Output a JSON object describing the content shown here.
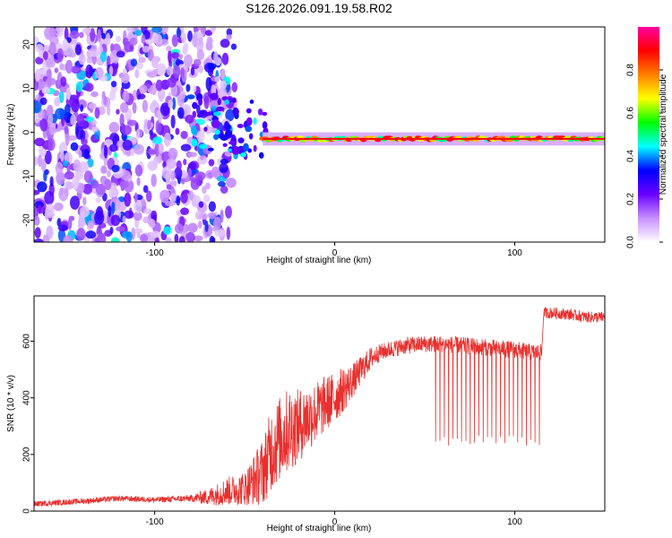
{
  "title": "S126.2026.091.19.58.R02",
  "chart_data": [
    {
      "type": "heatmap",
      "xlabel": "Height of straight line (km)",
      "ylabel": "Frequency (Hz)",
      "xlim": [
        -167,
        150
      ],
      "ylim": [
        -25,
        24
      ],
      "xticks": [
        -100,
        0,
        100
      ],
      "xtick_labels": [
        "-100",
        "0",
        "100"
      ],
      "yticks": [
        -20,
        -10,
        0,
        10,
        20
      ],
      "ytick_labels": [
        "-20",
        "-10",
        "0",
        "10",
        "20"
      ],
      "colorbar": {
        "label": "Normalized spectral amplitude",
        "range": [
          0,
          1
        ],
        "ticks": [
          0.0,
          0.2,
          0.4,
          0.6,
          0.8
        ],
        "tick_labels": [
          "0.0",
          "0.2",
          "0.4",
          "0.6",
          "0.8"
        ],
        "colormap": [
          "#ffffff",
          "#c890ff",
          "#6a00ff",
          "#0000ff",
          "#00ffff",
          "#00ff00",
          "#ffff00",
          "#ff8000",
          "#ff0000",
          "#ff00a0"
        ]
      },
      "regions": [
        {
          "name": "noise",
          "x_range": [
            -167,
            -60
          ],
          "f_range": [
            -25,
            24
          ],
          "amplitude": 0.1
        },
        {
          "name": "transition",
          "x_range": [
            -80,
            -40
          ],
          "f_range": [
            -5,
            10
          ],
          "amplitude": 0.3
        },
        {
          "name": "carrier",
          "x_range": [
            -40,
            150
          ],
          "f_center": -1.5,
          "amplitude": 0.8
        }
      ],
      "colors": {
        "line": "#000000"
      }
    },
    {
      "type": "line",
      "xlabel": "Height of straight line (km)",
      "ylabel": "SNR (10 * v/v)",
      "xlim": [
        -167,
        150
      ],
      "ylim": [
        0,
        760
      ],
      "xticks": [
        -100,
        0,
        100
      ],
      "xtick_labels": [
        "-100",
        "0",
        "100"
      ],
      "yticks": [
        0,
        200,
        400,
        600
      ],
      "ytick_labels": [
        "0",
        "200",
        "400",
        "600"
      ],
      "series": [
        {
          "color": "#e8302e",
          "x": [
            -167,
            -140,
            -120,
            -100,
            -80,
            -70,
            -60,
            -50,
            -40,
            -35,
            -30,
            -25,
            -20,
            -15,
            -10,
            -5,
            0,
            5,
            10,
            15,
            20,
            25,
            30,
            40,
            50,
            60,
            70,
            80,
            90,
            100,
            110,
            115,
            116,
            120,
            130,
            140,
            150
          ],
          "y": [
            25,
            35,
            45,
            40,
            45,
            50,
            70,
            80,
            140,
            220,
            260,
            290,
            300,
            330,
            350,
            380,
            400,
            430,
            460,
            500,
            540,
            560,
            570,
            585,
            590,
            590,
            585,
            580,
            575,
            570,
            560,
            560,
            700,
            700,
            695,
            685,
            685
          ],
          "noise_amplitude": [
            10,
            10,
            10,
            10,
            12,
            30,
            50,
            60,
            120,
            150,
            150,
            150,
            130,
            120,
            110,
            100,
            90,
            80,
            60,
            50,
            40,
            30,
            30,
            30,
            30,
            30,
            30,
            30,
            30,
            30,
            30,
            30,
            20,
            20,
            20,
            20,
            20
          ],
          "dropouts": {
            "x_range": [
              56,
              116
            ],
            "spacing": 2.4,
            "min_y": 230
          }
        }
      ]
    }
  ]
}
